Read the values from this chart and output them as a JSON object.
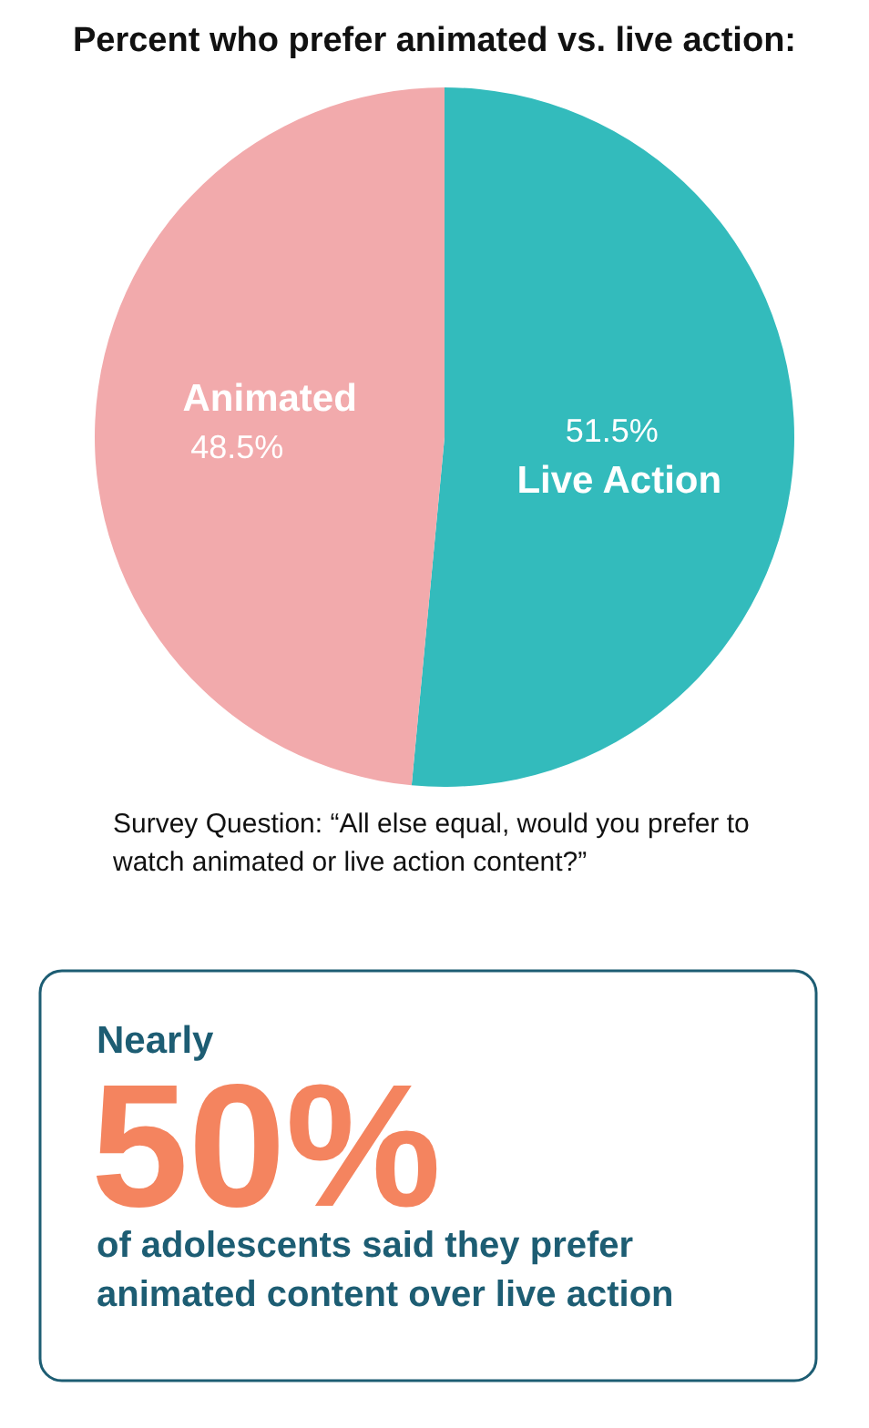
{
  "chart_data": {
    "type": "pie",
    "title": "Percent who prefer animated vs. live action:",
    "categories": [
      "Live Action",
      "Animated"
    ],
    "values": [
      51.5,
      48.5
    ],
    "colors": [
      "#33bbbc",
      "#f2aaac"
    ],
    "value_labels": [
      "51.5%",
      "48.5%"
    ],
    "legend": false,
    "annotations": [
      "Survey Question: “All else equal, would you prefer to watch animated or live action content?”",
      "Nearly",
      "50%",
      "of adolescents said they prefer animated content over live action"
    ]
  }
}
